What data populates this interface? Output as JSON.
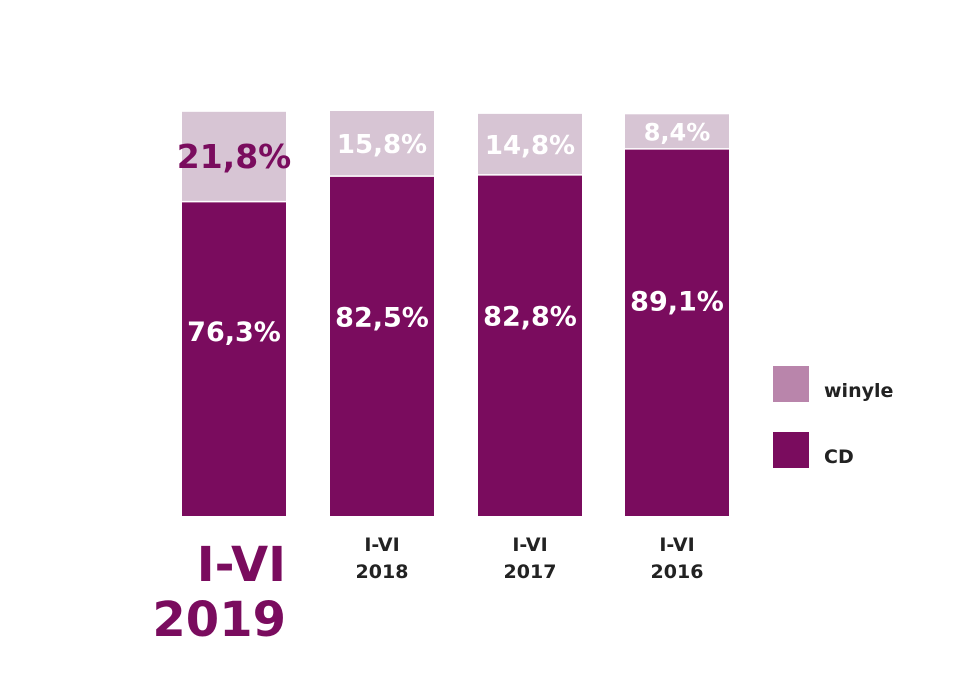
{
  "colors": {
    "cd": "#7a0c5e",
    "winyle_top": "#d7c5d4",
    "winyle_legend": "#b985ab",
    "highlight_text": "#7a0c5e",
    "white": "#ffffff",
    "dark_text": "#222222"
  },
  "legend": {
    "winyle_label": "winyle",
    "cd_label": "CD",
    "position": "right"
  },
  "chart_data": {
    "type": "bar",
    "stacked": true,
    "categories": [
      {
        "line1": "I-VI",
        "line2": "2019",
        "highlight": true
      },
      {
        "line1": "I-VI",
        "line2": "2018",
        "highlight": false
      },
      {
        "line1": "I-VI",
        "line2": "2017",
        "highlight": false
      },
      {
        "line1": "I-VI",
        "line2": "2016",
        "highlight": false
      }
    ],
    "series": [
      {
        "name": "CD",
        "values": [
          76.3,
          82.5,
          82.8,
          89.1
        ],
        "labels": [
          "76,3%",
          "82,5%",
          "82,8%",
          "89,1%"
        ]
      },
      {
        "name": "winyle",
        "values": [
          21.8,
          15.8,
          14.8,
          8.4
        ],
        "labels": [
          "21,8%",
          "15,8%",
          "14,8%",
          "8,4%"
        ]
      }
    ],
    "ylim": [
      0,
      100
    ],
    "grid": false
  }
}
